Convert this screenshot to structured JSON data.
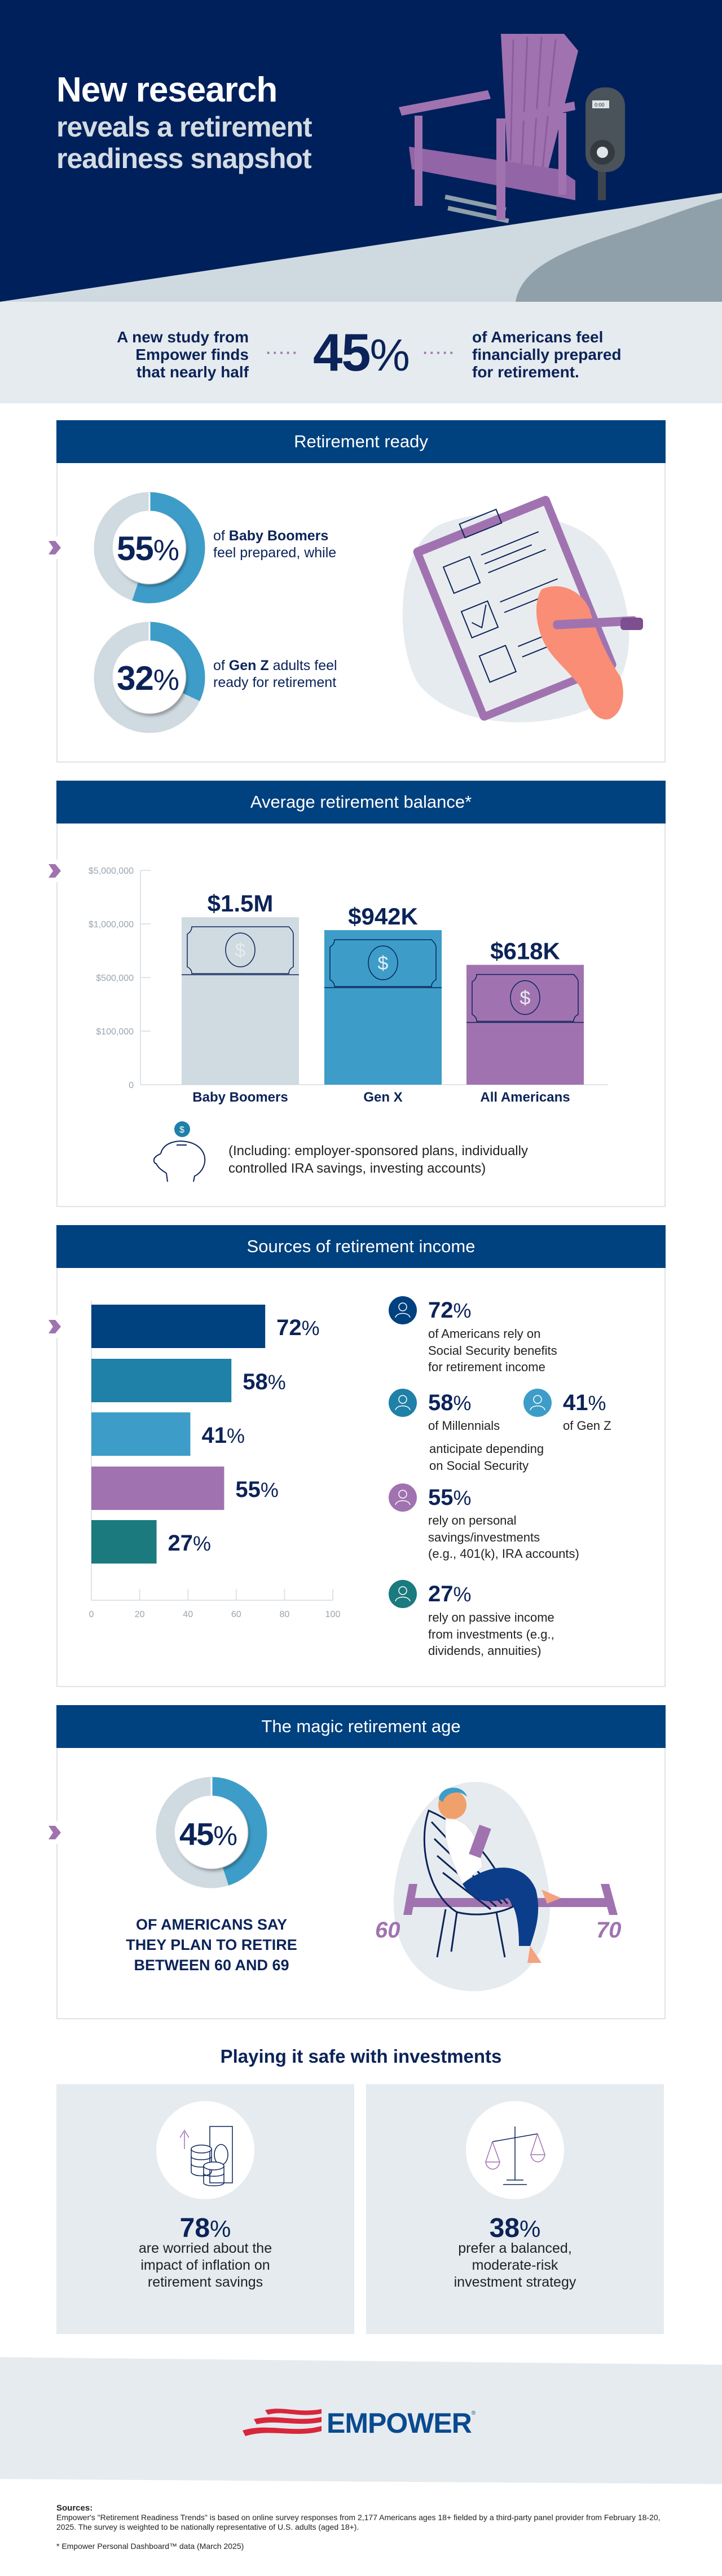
{
  "hero": {
    "title_line1": "New research",
    "title_line2": "reveals a retirement",
    "title_line3": "readiness snapshot",
    "meter_display": "0:00"
  },
  "intro": {
    "left_lines": [
      "A new study from",
      "Empower finds",
      "that nearly half"
    ],
    "stat_value": "45",
    "stat_unit": "%",
    "right_lines": [
      "of Americans feel",
      "financially prepared",
      "for retirement."
    ]
  },
  "retirement_ready": {
    "title": "Retirement ready",
    "items": [
      {
        "value": 55,
        "unit": "%",
        "pre": "of ",
        "bold": "Baby Boomers",
        "post": "",
        "line2": "feel prepared, while"
      },
      {
        "value": 32,
        "unit": "%",
        "pre": "of ",
        "bold": "Gen Z",
        "post": " adults feel",
        "line2": "ready for retirement"
      }
    ]
  },
  "average_balance": {
    "title": "Average retirement balance*",
    "note_lines": [
      "(Including: employer-sponsored plans, individually",
      "controlled IRA savings, investing accounts)"
    ]
  },
  "sources_income": {
    "title": "Sources of retirement income",
    "notes": [
      {
        "value": "72",
        "unit": "%",
        "lines": [
          "of Americans rely on",
          "Social Security benefits",
          "for retirement income"
        ],
        "color": "#00417f"
      },
      {
        "value": "58",
        "unit": "%",
        "lines": [
          "of Millennials"
        ],
        "color": "#1f80a8"
      },
      {
        "value": "41",
        "unit": "%",
        "lines": [
          "of Gen Z"
        ],
        "color": "#3d9dc8"
      },
      {
        "value": "55",
        "unit": "%",
        "lines": [
          "rely on personal",
          "savings/investments",
          "(e.g., 401(k), IRA accounts)"
        ],
        "color": "#a073b0"
      },
      {
        "value": "27",
        "unit": "%",
        "lines": [
          "rely on passive income",
          "from investments (e.g.,",
          "dividends, annuities)"
        ],
        "color": "#1b7a7d"
      }
    ],
    "shared_lines": [
      "anticipate depending",
      "on Social Security"
    ]
  },
  "magic_age": {
    "title": "The magic retirement age",
    "value": 45,
    "unit": "%",
    "caption_lines": [
      "OF AMERICANS SAY",
      "THEY PLAN TO RETIRE",
      "BETWEEN 60 AND 69"
    ],
    "range_start": "60",
    "range_end": "70"
  },
  "investments": {
    "title": "Playing it safe with investments",
    "cards": [
      {
        "value": "78",
        "unit": "%",
        "lines": [
          "are worried about the",
          "impact of inflation on",
          "retirement savings"
        ],
        "icon": "inflation-coins-icon"
      },
      {
        "value": "38",
        "unit": "%",
        "lines": [
          "prefer a balanced,",
          "moderate-risk",
          "investment strategy"
        ],
        "icon": "balance-scale-icon"
      }
    ]
  },
  "footer": {
    "logo_text": "EMPOWER",
    "sources_label": "Sources:",
    "sources_text": "Empower's \"Retirement Readiness Trends\" is based on online survey responses from 2,177 Americans ages 18+ fielded by a third-party panel provider from February 18-20, 2025. The survey is weighted to be nationally representative of U.S. adults (aged 18+).",
    "footnote": "* Empower Personal Dashboard™ data (March 2025)"
  },
  "colors": {
    "navy": "#00205b",
    "header_blue": "#00417f",
    "light_blue": "#3d9dc8",
    "purple": "#a073b0",
    "teal": "#1b7a7d",
    "light_gray": "#e6ebef",
    "donut_gray": "#cfdae1"
  },
  "chart_data": [
    {
      "type": "bar",
      "title": "Average retirement balance*",
      "categories": [
        "Baby Boomers",
        "Gen X",
        "All Americans"
      ],
      "values": [
        1500000,
        942000,
        618000
      ],
      "value_labels": [
        "$1.5M",
        "$942K",
        "$618K"
      ],
      "colors": [
        "#cfdae1",
        "#3d9dc8",
        "#a073b0"
      ],
      "y_ticks": [
        0,
        100000,
        500000,
        1000000,
        5000000
      ],
      "y_tick_labels": [
        "0",
        "$100,000",
        "$500,000",
        "$1,000,000",
        "$5,000,000"
      ],
      "y_scale": "non-linear (evenly spaced ticks)",
      "ylim": [
        0,
        5000000
      ],
      "grid": false
    },
    {
      "type": "bar",
      "orientation": "horizontal",
      "title": "Sources of retirement income",
      "values": [
        72,
        58,
        41,
        55,
        27
      ],
      "value_labels": [
        "72",
        "58",
        "41",
        "55",
        "27"
      ],
      "unit": "%",
      "colors": [
        "#00417f",
        "#1f80a8",
        "#3d9dc8",
        "#a073b0",
        "#1b7a7d"
      ],
      "x_ticks": [
        0,
        20,
        40,
        60,
        80,
        100
      ],
      "xlim": [
        0,
        100
      ],
      "grid": false
    }
  ]
}
